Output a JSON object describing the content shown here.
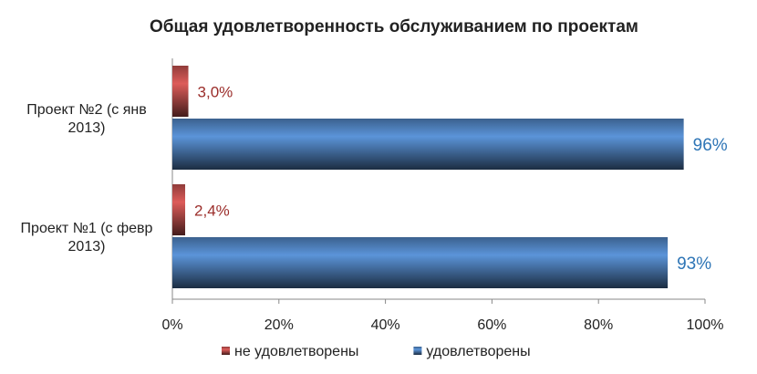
{
  "chart_data": {
    "type": "bar",
    "orientation": "horizontal",
    "title": "Общая удовлетворенность обслуживанием по проектам",
    "categories": [
      "Проект №1 (с февр 2013)",
      "Проект №2 (с янв 2013)"
    ],
    "series": [
      {
        "name": "не удовлетворены",
        "color": "#c0504d",
        "values": [
          2.4,
          3.0
        ],
        "value_labels": [
          "2,4%",
          "3,0%"
        ]
      },
      {
        "name": "удовлетворены",
        "color": "#4f81bd",
        "values": [
          93,
          96
        ],
        "value_labels": [
          "93%",
          "96%"
        ]
      }
    ],
    "xlim": [
      0,
      100
    ],
    "xticks": [
      {
        "value": 0,
        "label": "0%"
      },
      {
        "value": 20,
        "label": "20%"
      },
      {
        "value": 40,
        "label": "40%"
      },
      {
        "value": 60,
        "label": "60%"
      },
      {
        "value": 80,
        "label": "80%"
      },
      {
        "value": 100,
        "label": "100%"
      }
    ],
    "legend": "bottom"
  }
}
